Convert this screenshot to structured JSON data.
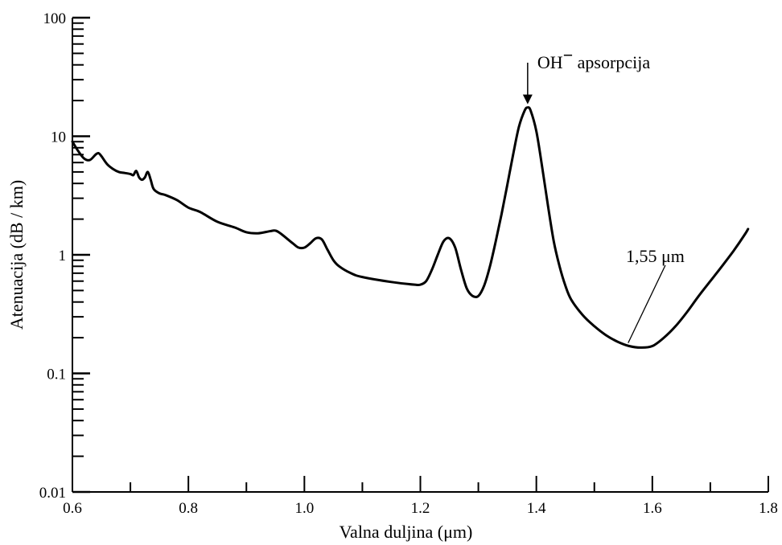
{
  "chart_data": {
    "type": "line",
    "xlabel": "Valna duljina (μm)",
    "ylabel": "Atenuacija (dB / km)",
    "xlim": [
      0.6,
      1.8
    ],
    "ylim": [
      0.01,
      100
    ],
    "yscale": "log",
    "x_ticks": [
      0.6,
      0.8,
      1.0,
      1.2,
      1.4,
      1.6,
      1.8
    ],
    "x_tick_labels": [
      "0.6",
      "0.8",
      "1.0",
      "1.2",
      "1.4",
      "1.6",
      "1.8"
    ],
    "y_ticks": [
      0.01,
      0.1,
      1,
      10,
      100
    ],
    "y_tick_labels": [
      "0.01",
      "0.1",
      "1",
      "10",
      "100"
    ],
    "grid": false,
    "series": [
      {
        "x": [
          0.6,
          0.61,
          0.62,
          0.63,
          0.64,
          0.645,
          0.65,
          0.66,
          0.67,
          0.68,
          0.69,
          0.7,
          0.705,
          0.71,
          0.715,
          0.72,
          0.725,
          0.73,
          0.735,
          0.74,
          0.75,
          0.76,
          0.78,
          0.8,
          0.82,
          0.85,
          0.88,
          0.9,
          0.92,
          0.94,
          0.95,
          0.96,
          0.98,
          0.99,
          1.0,
          1.01,
          1.02,
          1.03,
          1.04,
          1.05,
          1.06,
          1.08,
          1.1,
          1.15,
          1.19,
          1.2,
          1.21,
          1.22,
          1.23,
          1.24,
          1.25,
          1.26,
          1.27,
          1.28,
          1.29,
          1.3,
          1.31,
          1.32,
          1.33,
          1.34,
          1.35,
          1.36,
          1.37,
          1.38,
          1.385,
          1.39,
          1.4,
          1.41,
          1.42,
          1.43,
          1.44,
          1.45,
          1.46,
          1.48,
          1.5,
          1.52,
          1.54,
          1.56,
          1.58,
          1.6,
          1.62,
          1.64,
          1.66,
          1.68,
          1.7,
          1.72,
          1.74,
          1.76,
          1.765
        ],
        "y": [
          9.0,
          7.5,
          6.5,
          6.3,
          7.0,
          7.2,
          6.8,
          5.8,
          5.3,
          5.0,
          4.9,
          4.8,
          4.7,
          5.1,
          4.5,
          4.3,
          4.5,
          5.0,
          4.3,
          3.6,
          3.3,
          3.2,
          2.9,
          2.5,
          2.3,
          1.9,
          1.7,
          1.55,
          1.52,
          1.58,
          1.6,
          1.5,
          1.25,
          1.15,
          1.15,
          1.25,
          1.38,
          1.35,
          1.1,
          0.9,
          0.8,
          0.7,
          0.65,
          0.59,
          0.56,
          0.56,
          0.6,
          0.75,
          1.0,
          1.3,
          1.38,
          1.15,
          0.75,
          0.52,
          0.45,
          0.45,
          0.55,
          0.8,
          1.3,
          2.2,
          3.9,
          7.0,
          12.0,
          16.5,
          17.5,
          16.5,
          11.0,
          5.5,
          2.6,
          1.3,
          0.8,
          0.55,
          0.42,
          0.31,
          0.25,
          0.21,
          0.185,
          0.17,
          0.165,
          0.17,
          0.2,
          0.25,
          0.33,
          0.45,
          0.6,
          0.8,
          1.08,
          1.5,
          1.65
        ]
      }
    ],
    "annotations": [
      {
        "text": "OH",
        "superscript": "−",
        "text_after": " apsorpcija",
        "x": 1.385,
        "y": 17.5,
        "arrow": "down"
      },
      {
        "text": "1,55 μm",
        "x": 1.55,
        "y": 0.175,
        "leader_line": true
      }
    ]
  }
}
